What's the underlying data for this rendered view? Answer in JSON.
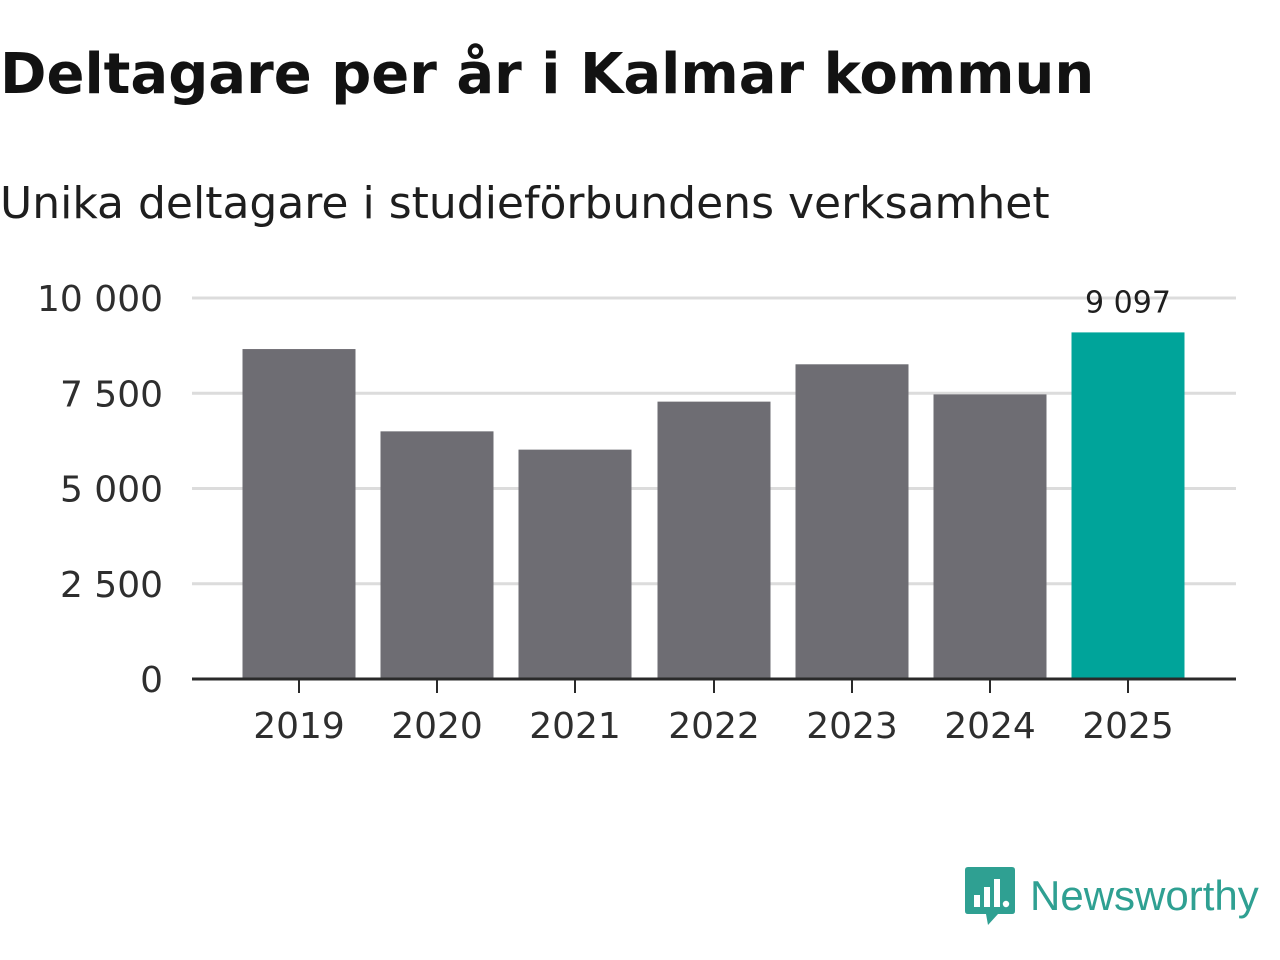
{
  "chart_data": {
    "type": "bar",
    "title": "Deltagare per år i Kalmar kommun",
    "subtitle": "Unika deltagare i studieförbundens verksamhet",
    "categories": [
      "2019",
      "2020",
      "2021",
      "2022",
      "2023",
      "2024",
      "2025"
    ],
    "values": [
      8660,
      6500,
      6020,
      7280,
      8260,
      7470,
      9097
    ],
    "value_labels": [
      "",
      "",
      "",
      "",
      "",
      "",
      "9 097"
    ],
    "ylim": [
      0,
      10000
    ],
    "yticks": [
      0,
      2500,
      5000,
      7500,
      10000
    ],
    "ytick_labels": [
      "0",
      "2 500",
      "5 000",
      "7 500",
      "10 000"
    ],
    "xlabel": "",
    "ylabel": "",
    "grid": true,
    "colors": {
      "default_bar": "#6e6d73",
      "highlight_bar": "#00a49a",
      "gridline": "#dcdcdc",
      "axis": "#2a2a2a"
    },
    "highlight_index": 6
  },
  "brand": {
    "name": "Newsworthy",
    "icon": "newsworthy-logo-icon",
    "color": "#2fa092"
  }
}
